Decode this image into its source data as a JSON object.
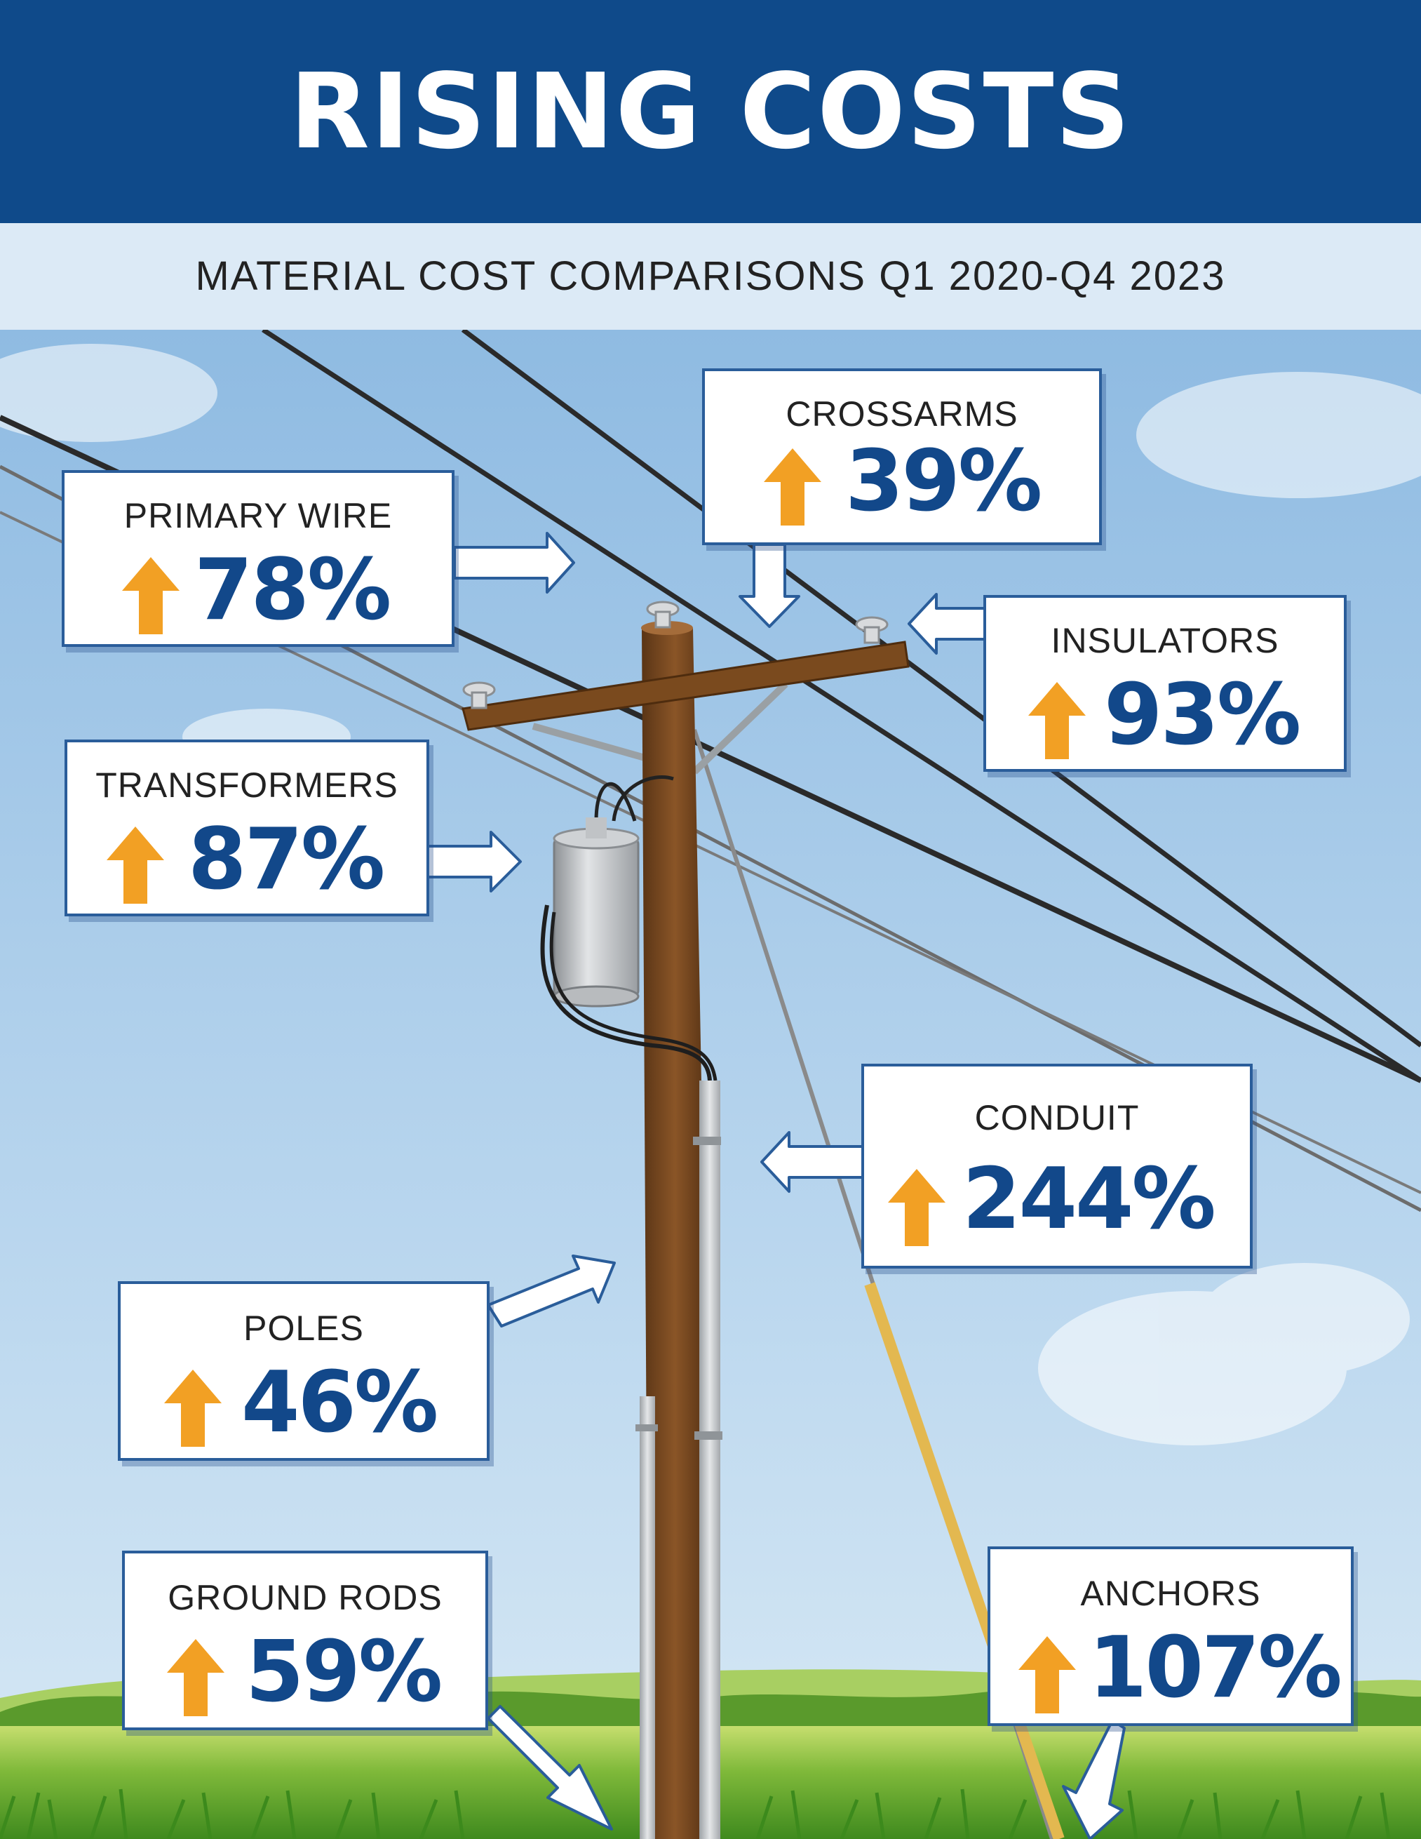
{
  "header": {
    "title": "RISING COSTS"
  },
  "subheader": {
    "text": "MATERIAL COST COMPARISONS Q1 2020-Q4 2023"
  },
  "colors": {
    "header_bg": "#0f4a8a",
    "subheader_bg": "#dceaf6",
    "value": "#12488a",
    "arrow_up": "#f2a024",
    "sky": "#9cc4e6"
  },
  "callouts": [
    {
      "label": "PRIMARY WIRE",
      "value": "78%",
      "icon": "up-arrow-icon"
    },
    {
      "label": "CROSSARMS",
      "value": "39%",
      "icon": "up-arrow-icon"
    },
    {
      "label": "INSULATORS",
      "value": "93%",
      "icon": "up-arrow-icon"
    },
    {
      "label": "TRANSFORMERS",
      "value": "87%",
      "icon": "up-arrow-icon"
    },
    {
      "label": "CONDUIT",
      "value": "244%",
      "icon": "up-arrow-icon"
    },
    {
      "label": "POLES",
      "value": "46%",
      "icon": "up-arrow-icon"
    },
    {
      "label": "GROUND RODS",
      "value": "59%",
      "icon": "up-arrow-icon"
    },
    {
      "label": "ANCHORS",
      "value": "107%",
      "icon": "up-arrow-icon"
    }
  ]
}
